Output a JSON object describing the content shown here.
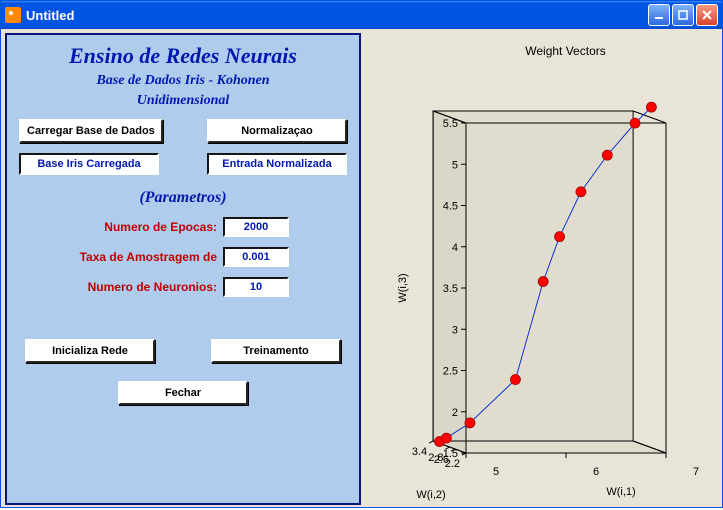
{
  "window": {
    "title": "Untitled"
  },
  "panel": {
    "main_title": "Ensino de Redes Neurais",
    "subtitle1": "Base de Dados Iris - Kohonen",
    "subtitle2": "Unidimensional",
    "btn_load": "Carregar Base de Dados",
    "btn_normalize": "Normalizaçao",
    "status_loaded": "Base Iris Carregada",
    "status_normalized": "Entrada Normalizada",
    "section_params": "(Parametros)",
    "label_epochs": "Numero de Epocas:",
    "value_epochs": "2000",
    "label_rate": "Taxa de Amostragem de",
    "value_rate": "0.001",
    "label_neurons": "Numero de Neuronios:",
    "value_neurons": "10",
    "btn_init": "Inicializa Rede",
    "btn_train": "Treinamento",
    "btn_close": "Fechar",
    "colors": {
      "panel_bg": "#b0cced",
      "panel_border": "#08167e",
      "title_color": "#0018b0",
      "label_color": "#c00000",
      "value_color": "#0018b0"
    }
  },
  "chart": {
    "type": "3d-line-scatter",
    "title": "Weight Vectors",
    "title_fontsize": 12,
    "xlabel": "W(i,1)",
    "ylabel": "W(i,2)",
    "zlabel": "W(i,3)",
    "label_fontsize": 11,
    "xlim": [
      5,
      7
    ],
    "xticks": [
      5,
      6,
      7
    ],
    "ylim": [
      2.2,
      3.4
    ],
    "yticks": [
      2.8,
      3.4
    ],
    "yticks_extra": [
      2.2,
      2.6
    ],
    "zlim": [
      1.5,
      5.5
    ],
    "zticks": [
      1.5,
      2,
      2.5,
      3,
      3.5,
      4,
      4.5,
      5,
      5.5
    ],
    "background_color": "#e8e4d8",
    "box_edge_color": "#000000",
    "box_face_color": "rgba(210,205,190,0.35)",
    "line_color": "#1030d0",
    "line_width": 1,
    "marker_color": "#ff0000",
    "marker_edge": "#a00000",
    "marker_size": 5,
    "points": [
      {
        "x": 5.05,
        "y": 3.35,
        "z": 1.5
      },
      {
        "x": 5.1,
        "y": 3.28,
        "z": 1.55
      },
      {
        "x": 5.3,
        "y": 3.15,
        "z": 1.75
      },
      {
        "x": 5.7,
        "y": 2.95,
        "z": 2.3
      },
      {
        "x": 5.95,
        "y": 2.85,
        "z": 3.5
      },
      {
        "x": 6.1,
        "y": 2.8,
        "z": 4.05
      },
      {
        "x": 6.3,
        "y": 2.75,
        "z": 4.6
      },
      {
        "x": 6.55,
        "y": 2.7,
        "z": 5.05
      },
      {
        "x": 6.8,
        "y": 2.6,
        "z": 5.45
      },
      {
        "x": 6.95,
        "y": 2.55,
        "z": 5.65
      }
    ]
  }
}
